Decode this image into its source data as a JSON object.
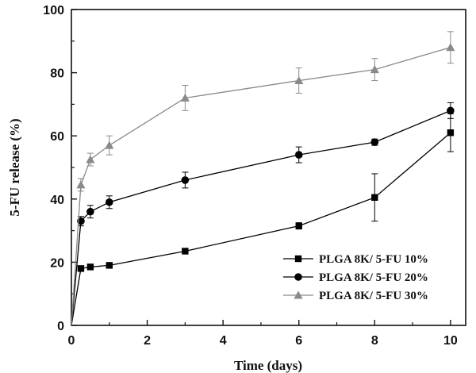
{
  "chart_data": {
    "type": "line",
    "xlabel": "Time (days)",
    "ylabel": "5-FU release (%)",
    "xlim": [
      0,
      10.4
    ],
    "ylim": [
      0,
      100
    ],
    "xticks": [
      0,
      2,
      4,
      6,
      8,
      10
    ],
    "yticks": [
      0,
      20,
      40,
      60,
      80,
      100
    ],
    "legend_position": "bottom-right",
    "series": [
      {
        "name": "PLGA 8K/ 5-FU 10%",
        "marker": "square",
        "color": "#000000",
        "points": [
          {
            "x": 0,
            "y": 0
          },
          {
            "x": 0.25,
            "y": 18,
            "err": 0.6
          },
          {
            "x": 0.5,
            "y": 18.5,
            "err": 0.6
          },
          {
            "x": 1,
            "y": 19,
            "err": 0.6
          },
          {
            "x": 3,
            "y": 23.5,
            "err": 0.8
          },
          {
            "x": 6,
            "y": 31.5,
            "err": 1
          },
          {
            "x": 8,
            "y": 40.5,
            "err": 7.5
          },
          {
            "x": 10,
            "y": 61,
            "err": 6
          }
        ]
      },
      {
        "name": "PLGA 8K/ 5-FU 20%",
        "marker": "circle",
        "color": "#000000",
        "points": [
          {
            "x": 0,
            "y": 0
          },
          {
            "x": 0.25,
            "y": 33,
            "err": 1.5
          },
          {
            "x": 0.5,
            "y": 36,
            "err": 2
          },
          {
            "x": 1,
            "y": 39,
            "err": 2
          },
          {
            "x": 3,
            "y": 46,
            "err": 2.5
          },
          {
            "x": 6,
            "y": 54,
            "err": 2.5
          },
          {
            "x": 8,
            "y": 58,
            "err": 1
          },
          {
            "x": 10,
            "y": 68,
            "err": 2.5
          }
        ]
      },
      {
        "name": "PLGA 8K/ 5-FU 30%",
        "marker": "triangle",
        "color": "#8a8a8a",
        "points": [
          {
            "x": 0,
            "y": 0
          },
          {
            "x": 0.25,
            "y": 44.5,
            "err": 2
          },
          {
            "x": 0.5,
            "y": 52.5,
            "err": 2
          },
          {
            "x": 1,
            "y": 57,
            "err": 3
          },
          {
            "x": 3,
            "y": 72,
            "err": 4
          },
          {
            "x": 6,
            "y": 77.5,
            "err": 4
          },
          {
            "x": 8,
            "y": 81,
            "err": 3.5
          },
          {
            "x": 10,
            "y": 88,
            "err": 5
          }
        ]
      }
    ]
  }
}
